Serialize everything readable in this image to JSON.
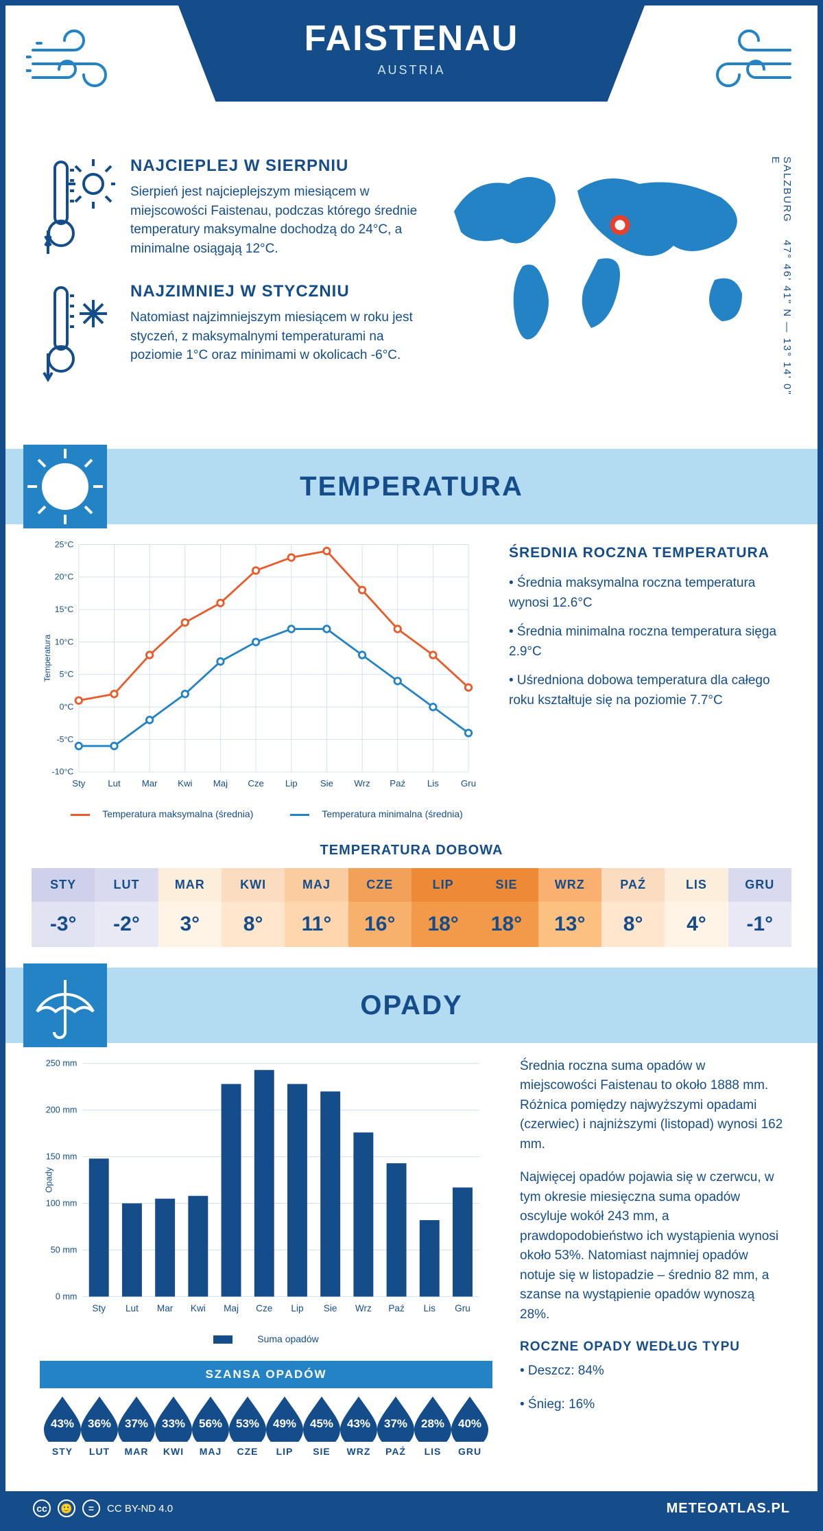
{
  "header": {
    "city": "FAISTENAU",
    "country": "AUSTRIA"
  },
  "intro": {
    "warmest": {
      "title": "NAJCIEPLEJ W SIERPNIU",
      "text": "Sierpień jest najcieplejszym miesiącem w miejscowości Faistenau, podczas którego średnie temperatury maksymalne dochodzą do 24°C, a minimalne osiągają 12°C."
    },
    "coldest": {
      "title": "NAJZIMNIEJ W STYCZNIU",
      "text": "Natomiast najzimniejszym miesiącem w roku jest styczeń, z maksymalnymi temperaturami na poziomie 1°C oraz minimami w okolicach -6°C."
    },
    "coords": "47° 46' 41\" N — 13° 14' 0\" E",
    "region": "SALZBURG"
  },
  "months": [
    "Sty",
    "Lut",
    "Mar",
    "Kwi",
    "Maj",
    "Cze",
    "Lip",
    "Sie",
    "Wrz",
    "Paź",
    "Lis",
    "Gru"
  ],
  "months_upper": [
    "STY",
    "LUT",
    "MAR",
    "KWI",
    "MAJ",
    "CZE",
    "LIP",
    "SIE",
    "WRZ",
    "PAŹ",
    "LIS",
    "GRU"
  ],
  "temp_section": {
    "title": "TEMPERATURA",
    "chart": {
      "type": "line",
      "ylim": [
        -10,
        25
      ],
      "ytick_step": 5,
      "y_unit": "°C",
      "axis_label": "Temperatura",
      "grid_color": "#d0e0ef",
      "background_color": "#ffffff",
      "series": [
        {
          "name": "Temperatura maksymalna (średnia)",
          "color": "#e85c2b",
          "values": [
            1,
            2,
            8,
            13,
            16,
            21,
            23,
            24,
            18,
            12,
            8,
            3
          ]
        },
        {
          "name": "Temperatura minimalna (średnia)",
          "color": "#2483c5",
          "values": [
            -6,
            -6,
            -2,
            2,
            7,
            10,
            12,
            12,
            8,
            4,
            0,
            -4
          ]
        }
      ]
    },
    "side": {
      "title": "ŚREDNIA ROCZNA TEMPERATURA",
      "bullets": [
        "• Średnia maksymalna roczna temperatura wynosi 12.6°C",
        "• Średnia minimalna roczna temperatura sięga 2.9°C",
        "• Uśredniona dobowa temperatura dla całego roku kształtuje się na poziomie 7.7°C"
      ]
    },
    "daily": {
      "title": "TEMPERATURA DOBOWA",
      "values": [
        "-3°",
        "-2°",
        "3°",
        "8°",
        "11°",
        "16°",
        "18°",
        "18°",
        "13°",
        "8°",
        "4°",
        "-1°"
      ],
      "bg_colors": [
        "#e2e3f2",
        "#e8e9f4",
        "#fff4e6",
        "#ffe6cc",
        "#ffd6ad",
        "#f8b16c",
        "#f39a4a",
        "#f39a4a",
        "#fcc080",
        "#ffe6cc",
        "#fff4e6",
        "#e8e9f4"
      ],
      "head_colors": [
        "#cfd1ea",
        "#d9daf0",
        "#fdeedb",
        "#fcdcc0",
        "#fbcc9f",
        "#f3a159",
        "#ee8a36",
        "#ee8a36",
        "#f9b070",
        "#fcdcc0",
        "#fdeedb",
        "#d9daf0"
      ]
    }
  },
  "precip_section": {
    "title": "OPADY",
    "chart": {
      "type": "bar",
      "ylim": [
        0,
        250
      ],
      "ytick_step": 50,
      "y_unit": " mm",
      "axis_label": "Opady",
      "bar_color": "#144d8a",
      "grid_color": "#d0e0ef",
      "values": [
        148,
        100,
        105,
        108,
        228,
        243,
        228,
        220,
        176,
        143,
        82,
        117
      ],
      "legend": "Suma opadów"
    },
    "text": {
      "p1": "Średnia roczna suma opadów w miejscowości Faistenau to około 1888 mm. Różnica pomiędzy najwyższymi opadami (czerwiec) i najniższymi (listopad) wynosi 162 mm.",
      "p2": "Najwięcej opadów pojawia się w czerwcu, w tym okresie miesięczna suma opadów oscyluje wokół 243 mm, a prawdopodobieństwo ich wystąpienia wynosi około 53%. Natomiast najmniej opadów notuje się w listopadzie – średnio 82 mm, a szanse na wystąpienie opadów wynoszą 28%.",
      "by_type_title": "ROCZNE OPADY WEDŁUG TYPU",
      "by_type": [
        "• Deszcz: 84%",
        "• Śnieg: 16%"
      ]
    },
    "chance": {
      "title": "SZANSA OPADÓW",
      "values": [
        "43%",
        "36%",
        "37%",
        "33%",
        "56%",
        "53%",
        "49%",
        "45%",
        "43%",
        "37%",
        "28%",
        "40%"
      ]
    }
  },
  "footer": {
    "license": "CC BY-ND 4.0",
    "brand": "METEOATLAS.PL"
  }
}
